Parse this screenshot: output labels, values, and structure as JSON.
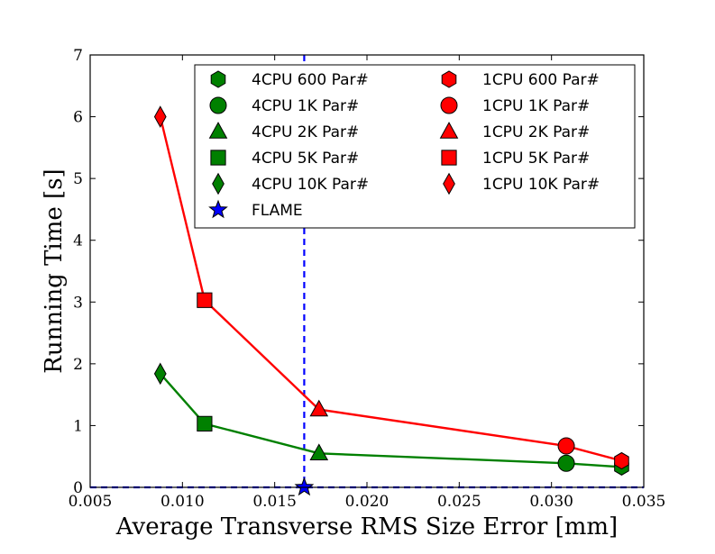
{
  "chart_data": {
    "type": "line",
    "xlabel": "Average Transverse RMS Size Error [mm]",
    "ylabel": "Running Time [s]",
    "xlim": [
      0.005,
      0.035
    ],
    "ylim": [
      0,
      7
    ],
    "xticks": [
      0.005,
      0.01,
      0.015,
      0.02,
      0.025,
      0.03,
      0.035
    ],
    "xtick_labels": [
      "0.005",
      "0.010",
      "0.015",
      "0.020",
      "0.025",
      "0.030",
      "0.035"
    ],
    "yticks": [
      0,
      1,
      2,
      3,
      4,
      5,
      6,
      7
    ],
    "ytick_labels": [
      "0",
      "1",
      "2",
      "3",
      "4",
      "5",
      "6",
      "7"
    ],
    "grid": false,
    "legend_placement": "top-right",
    "colors": {
      "green": "#008000",
      "red": "#ff0000",
      "blue": "#0000ff"
    },
    "series": [
      {
        "name": "4CPU",
        "color": "#008000",
        "x": [
          0.0088,
          0.0112,
          0.0174,
          0.0308,
          0.0338
        ],
        "y": [
          1.84,
          1.03,
          0.55,
          0.39,
          0.33
        ],
        "markers": [
          "diamond",
          "square",
          "triangle",
          "circle",
          "hexagon"
        ]
      },
      {
        "name": "1CPU",
        "color": "#ff0000",
        "x": [
          0.0088,
          0.0112,
          0.0174,
          0.0308,
          0.0338
        ],
        "y": [
          6.0,
          3.03,
          1.26,
          0.67,
          0.43
        ],
        "markers": [
          "diamond",
          "square",
          "triangle",
          "circle",
          "hexagon"
        ]
      }
    ],
    "flame": {
      "name": "FLAME",
      "x": 0.0166,
      "y": 0.0,
      "color": "#0000ff"
    },
    "legend": [
      {
        "label": "4CPU 600 Par#",
        "marker": "hexagon",
        "color": "#008000"
      },
      {
        "label": "4CPU 1K Par#",
        "marker": "circle",
        "color": "#008000"
      },
      {
        "label": "4CPU 2K Par#",
        "marker": "triangle",
        "color": "#008000"
      },
      {
        "label": "4CPU 5K Par#",
        "marker": "square",
        "color": "#008000"
      },
      {
        "label": "4CPU 10K Par#",
        "marker": "diamond",
        "color": "#008000"
      },
      {
        "label": "FLAME",
        "marker": "star",
        "color": "#0000ff"
      },
      {
        "label": "1CPU 600 Par#",
        "marker": "hexagon",
        "color": "#ff0000"
      },
      {
        "label": "1CPU 1K Par#",
        "marker": "circle",
        "color": "#ff0000"
      },
      {
        "label": "1CPU 2K Par#",
        "marker": "triangle",
        "color": "#ff0000"
      },
      {
        "label": "1CPU 5K Par#",
        "marker": "square",
        "color": "#ff0000"
      },
      {
        "label": "1CPU 10K Par#",
        "marker": "diamond",
        "color": "#ff0000"
      }
    ]
  }
}
